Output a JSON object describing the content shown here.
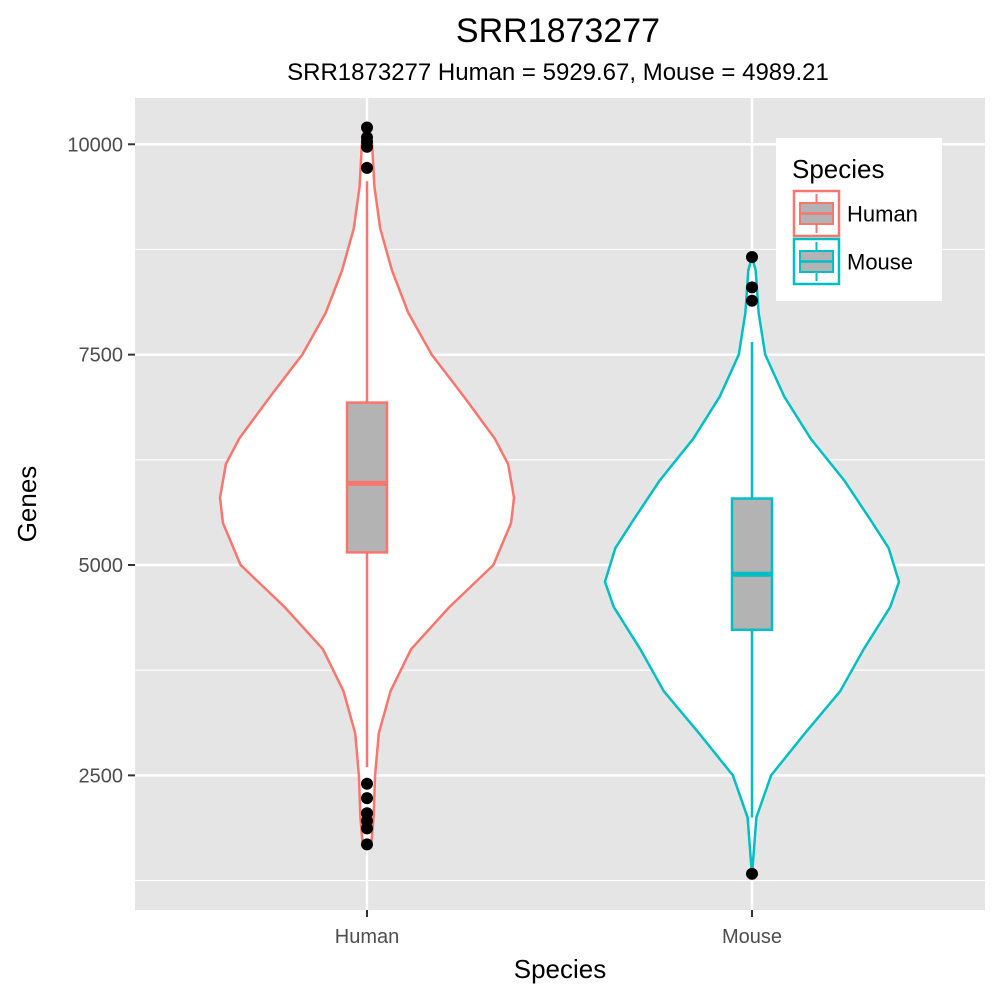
{
  "chart_data": {
    "type": "violin",
    "title": "SRR1873277",
    "subtitle": "SRR1873277 Human = 5929.67, Mouse = 4989.21",
    "xlabel": "Species",
    "ylabel": "Genes",
    "ylim": [
      900,
      10550
    ],
    "yticks": [
      2500,
      5000,
      7500,
      10000
    ],
    "ytick_labels": [
      "2500",
      "5000",
      "7500",
      "10000"
    ],
    "grid": true,
    "legend": {
      "title": "Species",
      "position": "top-right",
      "entries": [
        "Human",
        "Mouse"
      ]
    },
    "series": [
      {
        "name": "Human",
        "color": "#F8766D",
        "box_fill": "#b3b3b3",
        "box": {
          "min": 2600,
          "q1": 5150,
          "median": 5970,
          "q3": 6930,
          "max": 9560
        },
        "outliers": [
          10200,
          10080,
          10030,
          9970,
          9720,
          2400,
          2230,
          2050,
          1960,
          1870,
          1680
        ],
        "violin_profile": [
          [
            1650,
            0
          ],
          [
            1700,
            0.03
          ],
          [
            2000,
            0.045
          ],
          [
            2500,
            0.055
          ],
          [
            3000,
            0.08
          ],
          [
            3500,
            0.16
          ],
          [
            4000,
            0.3
          ],
          [
            4500,
            0.56
          ],
          [
            5000,
            0.86
          ],
          [
            5500,
            0.98
          ],
          [
            5800,
            1.0
          ],
          [
            6200,
            0.96
          ],
          [
            6500,
            0.87
          ],
          [
            7000,
            0.66
          ],
          [
            7500,
            0.44
          ],
          [
            8000,
            0.28
          ],
          [
            8500,
            0.17
          ],
          [
            9000,
            0.09
          ],
          [
            9500,
            0.05
          ],
          [
            10000,
            0.035
          ],
          [
            10150,
            0.02
          ],
          [
            10200,
            0
          ]
        ]
      },
      {
        "name": "Mouse",
        "color": "#00BFC4",
        "box_fill": "#b3b3b3",
        "box": {
          "min": 2000,
          "q1": 4230,
          "median": 4890,
          "q3": 5790,
          "max": 7650
        },
        "outliers": [
          8660,
          8300,
          8140,
          1330
        ],
        "violin_profile": [
          [
            1330,
            0
          ],
          [
            1500,
            0.008
          ],
          [
            2000,
            0.03
          ],
          [
            2500,
            0.13
          ],
          [
            3000,
            0.36
          ],
          [
            3500,
            0.6
          ],
          [
            4000,
            0.76
          ],
          [
            4500,
            0.94
          ],
          [
            4800,
            1.0
          ],
          [
            5200,
            0.93
          ],
          [
            5500,
            0.82
          ],
          [
            6000,
            0.63
          ],
          [
            6500,
            0.4
          ],
          [
            7000,
            0.22
          ],
          [
            7500,
            0.09
          ],
          [
            8000,
            0.045
          ],
          [
            8500,
            0.025
          ],
          [
            8660,
            0
          ]
        ]
      }
    ]
  }
}
